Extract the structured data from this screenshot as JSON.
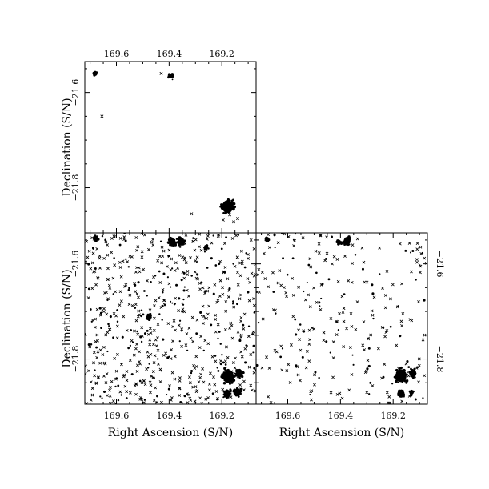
{
  "figure": {
    "foreground": "#000000",
    "background": "#ffffff",
    "marker": "cross-and-dot"
  },
  "chart_data": [
    {
      "panel": "top-left",
      "type": "scatter",
      "title": "",
      "xlabel": "",
      "ylabel": "Declination (S/N)",
      "xlim": [
        169.72,
        169.07
      ],
      "ylim": [
        -21.895,
        -21.535
      ],
      "x_ticks": [
        "169.6",
        "169.4",
        "169.2"
      ],
      "x_tick_values": [
        169.6,
        169.4,
        169.2
      ],
      "x_tick_side": "top",
      "y_ticks": [
        "−21.6",
        "−21.8"
      ],
      "y_tick_values": [
        -21.6,
        -21.8
      ],
      "y_tick_side": "left",
      "grid": false,
      "density": "sparse",
      "clusters": [
        {
          "ra": 169.394,
          "dec": -21.565,
          "size": "small"
        },
        {
          "ra": 169.178,
          "dec": -21.84,
          "size": "large"
        },
        {
          "ra": 169.158,
          "dec": -21.843,
          "size": "small"
        },
        {
          "ra": 169.68,
          "dec": -21.56,
          "size": "small"
        }
      ],
      "points": [
        {
          "ra": 169.43,
          "dec": -21.56
        },
        {
          "ra": 169.655,
          "dec": -21.65
        },
        {
          "ra": 169.315,
          "dec": -21.855
        },
        {
          "ra": 169.17,
          "dec": -21.857
        },
        {
          "ra": 169.14,
          "dec": -21.865
        },
        {
          "ra": 169.195,
          "dec": -21.868
        },
        {
          "ra": 169.155,
          "dec": -21.872
        }
      ]
    },
    {
      "panel": "bottom-left",
      "type": "scatter",
      "title": "",
      "xlabel": "Right Ascension (S/N)",
      "ylabel": "Declination (S/N)",
      "xlim": [
        169.72,
        169.07
      ],
      "ylim": [
        -21.895,
        -21.535
      ],
      "x_ticks": [
        "169.6",
        "169.4",
        "169.2"
      ],
      "x_tick_values": [
        169.6,
        169.4,
        169.2
      ],
      "x_tick_side": "bottom",
      "y_ticks": [
        "−21.6",
        "−21.8"
      ],
      "y_tick_values": [
        -21.6,
        -21.8
      ],
      "y_tick_side": "left",
      "grid": false,
      "density": "dense",
      "clusters": [
        {
          "ra": 169.388,
          "dec": -21.555,
          "size": "medium"
        },
        {
          "ra": 169.355,
          "dec": -21.553,
          "size": "medium"
        },
        {
          "ra": 169.478,
          "dec": -21.713,
          "size": "small"
        },
        {
          "ra": 169.175,
          "dec": -21.837,
          "size": "large"
        },
        {
          "ra": 169.133,
          "dec": -21.83,
          "size": "medium"
        },
        {
          "ra": 169.18,
          "dec": -21.873,
          "size": "medium"
        },
        {
          "ra": 169.14,
          "dec": -21.87,
          "size": "medium"
        },
        {
          "ra": 169.26,
          "dec": -21.565,
          "size": "small"
        },
        {
          "ra": 169.68,
          "dec": -21.548,
          "size": "small"
        }
      ]
    },
    {
      "panel": "bottom-right",
      "type": "scatter",
      "title": "",
      "xlabel": "Right Ascension (S/N)",
      "ylabel": "",
      "xlim": [
        169.72,
        169.07
      ],
      "ylim": [
        -21.895,
        -21.535
      ],
      "x_ticks": [
        "169.6",
        "169.4",
        "169.2"
      ],
      "x_tick_values": [
        169.6,
        169.4,
        169.2
      ],
      "x_tick_side": "bottom",
      "y_ticks": [
        "−21.6",
        "−21.8"
      ],
      "y_tick_values": [
        -21.6,
        -21.8
      ],
      "y_tick_side": "right",
      "grid": false,
      "density": "medium",
      "clusters": [
        {
          "ra": 169.375,
          "dec": -21.552,
          "size": "medium"
        },
        {
          "ra": 169.405,
          "dec": -21.555,
          "size": "small"
        },
        {
          "ra": 169.17,
          "dec": -21.835,
          "size": "large"
        },
        {
          "ra": 169.125,
          "dec": -21.83,
          "size": "medium"
        },
        {
          "ra": 169.17,
          "dec": -21.873,
          "size": "medium"
        },
        {
          "ra": 169.13,
          "dec": -21.87,
          "size": "small"
        },
        {
          "ra": 169.68,
          "dec": -21.548,
          "size": "small"
        }
      ]
    }
  ]
}
